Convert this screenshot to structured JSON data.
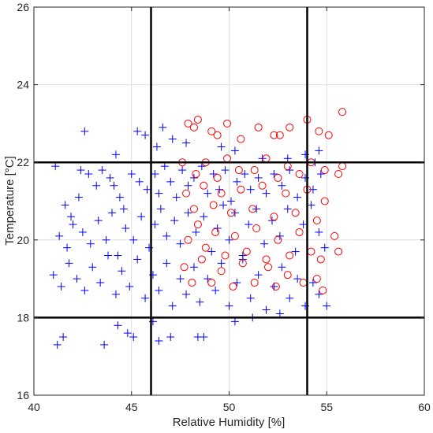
{
  "chart_data": {
    "type": "scatter",
    "xlabel": "Relative Humidity [%]",
    "ylabel": "Temperature [°C]",
    "xlim": [
      40,
      60
    ],
    "ylim": [
      16,
      26
    ],
    "xticks": [
      40,
      45,
      50,
      55,
      60
    ],
    "yticks": [
      16,
      18,
      20,
      22,
      24,
      26
    ],
    "grid": true,
    "reference_lines": {
      "vertical": [
        46.0,
        54.0
      ],
      "horizontal": [
        18.0,
        22.0
      ],
      "color": "#000000"
    },
    "series": [
      {
        "marker": "plus",
        "color": "#0000ff",
        "points": [
          [
            41.1,
            21.9
          ],
          [
            42.6,
            22.8
          ],
          [
            44.2,
            22.2
          ],
          [
            45.3,
            22.8
          ],
          [
            45.7,
            22.7
          ],
          [
            46.3,
            22.4
          ],
          [
            46.6,
            22.9
          ],
          [
            47.1,
            22.6
          ],
          [
            47.8,
            22.5
          ],
          [
            49.6,
            22.4
          ],
          [
            50.3,
            22.3
          ],
          [
            51.7,
            22.1
          ],
          [
            53.0,
            22.1
          ],
          [
            53.9,
            22.2
          ],
          [
            54.4,
            22.0
          ],
          [
            54.6,
            22.3
          ],
          [
            41.6,
            20.9
          ],
          [
            41.9,
            20.6
          ],
          [
            42.3,
            21.1
          ],
          [
            42.4,
            21.8
          ],
          [
            42.8,
            21.7
          ],
          [
            43.2,
            21.4
          ],
          [
            43.5,
            21.8
          ],
          [
            43.9,
            21.6
          ],
          [
            44.1,
            21.4
          ],
          [
            44.4,
            21.1
          ],
          [
            44.6,
            20.8
          ],
          [
            45.0,
            21.7
          ],
          [
            45.4,
            21.5
          ],
          [
            45.8,
            21.3
          ],
          [
            46.2,
            21.7
          ],
          [
            46.4,
            21.2
          ],
          [
            46.7,
            21.9
          ],
          [
            47.0,
            21.5
          ],
          [
            47.3,
            21.1
          ],
          [
            47.6,
            21.8
          ],
          [
            47.9,
            21.4
          ],
          [
            48.2,
            21.6
          ],
          [
            48.6,
            21.9
          ],
          [
            48.9,
            21.2
          ],
          [
            49.2,
            21.7
          ],
          [
            49.5,
            21.3
          ],
          [
            49.8,
            21.8
          ],
          [
            50.1,
            21.0
          ],
          [
            50.4,
            21.5
          ],
          [
            50.8,
            21.7
          ],
          [
            51.1,
            21.3
          ],
          [
            51.5,
            21.6
          ],
          [
            51.9,
            21.2
          ],
          [
            52.3,
            21.7
          ],
          [
            52.7,
            21.4
          ],
          [
            53.1,
            21.8
          ],
          [
            53.5,
            21.1
          ],
          [
            53.9,
            21.6
          ],
          [
            54.3,
            21.3
          ],
          [
            54.7,
            21.7
          ],
          [
            41.3,
            20.1
          ],
          [
            41.7,
            19.8
          ],
          [
            42.0,
            20.4
          ],
          [
            42.5,
            20.2
          ],
          [
            42.9,
            19.9
          ],
          [
            43.3,
            20.5
          ],
          [
            43.7,
            20.0
          ],
          [
            44.0,
            20.7
          ],
          [
            44.3,
            19.6
          ],
          [
            44.7,
            20.3
          ],
          [
            45.1,
            20.0
          ],
          [
            45.5,
            20.6
          ],
          [
            45.9,
            19.8
          ],
          [
            46.2,
            20.4
          ],
          [
            46.5,
            20.8
          ],
          [
            46.8,
            20.1
          ],
          [
            47.2,
            20.5
          ],
          [
            47.5,
            19.9
          ],
          [
            47.9,
            20.7
          ],
          [
            48.3,
            20.2
          ],
          [
            48.7,
            20.6
          ],
          [
            49.1,
            19.7
          ],
          [
            49.4,
            20.3
          ],
          [
            49.7,
            20.9
          ],
          [
            50.0,
            20.0
          ],
          [
            50.3,
            20.7
          ],
          [
            50.7,
            19.6
          ],
          [
            51.0,
            20.4
          ],
          [
            51.4,
            20.8
          ],
          [
            51.8,
            19.9
          ],
          [
            52.2,
            20.5
          ],
          [
            52.6,
            20.1
          ],
          [
            53.0,
            20.8
          ],
          [
            53.4,
            19.7
          ],
          [
            53.8,
            20.4
          ],
          [
            54.2,
            20.9
          ],
          [
            54.6,
            20.2
          ],
          [
            54.9,
            19.8
          ],
          [
            41.0,
            19.1
          ],
          [
            41.4,
            18.8
          ],
          [
            41.8,
            19.4
          ],
          [
            42.2,
            19.0
          ],
          [
            42.6,
            18.7
          ],
          [
            43.0,
            19.3
          ],
          [
            43.4,
            18.9
          ],
          [
            43.8,
            19.6
          ],
          [
            44.2,
            18.6
          ],
          [
            44.5,
            19.2
          ],
          [
            44.9,
            18.8
          ],
          [
            45.3,
            19.5
          ],
          [
            45.7,
            18.5
          ],
          [
            46.1,
            19.1
          ],
          [
            46.4,
            18.7
          ],
          [
            46.8,
            19.4
          ],
          [
            47.1,
            18.3
          ],
          [
            47.5,
            19.0
          ],
          [
            47.8,
            18.6
          ],
          [
            48.2,
            19.3
          ],
          [
            48.5,
            18.4
          ],
          [
            48.9,
            19.0
          ],
          [
            49.3,
            18.7
          ],
          [
            49.6,
            19.4
          ],
          [
            50.0,
            18.3
          ],
          [
            50.4,
            18.9
          ],
          [
            50.7,
            19.5
          ],
          [
            51.1,
            18.5
          ],
          [
            51.5,
            19.1
          ],
          [
            51.9,
            18.2
          ],
          [
            52.3,
            18.8
          ],
          [
            52.7,
            19.3
          ],
          [
            53.1,
            18.5
          ],
          [
            53.5,
            19.0
          ],
          [
            53.9,
            18.3
          ],
          [
            54.3,
            18.9
          ],
          [
            54.6,
            18.6
          ],
          [
            55.0,
            18.3
          ],
          [
            41.2,
            17.3
          ],
          [
            41.5,
            17.5
          ],
          [
            43.6,
            17.3
          ],
          [
            44.3,
            17.8
          ],
          [
            44.8,
            17.6
          ],
          [
            45.1,
            17.5
          ],
          [
            46.1,
            17.9
          ],
          [
            46.4,
            17.4
          ],
          [
            47.0,
            17.5
          ],
          [
            48.4,
            17.5
          ],
          [
            48.7,
            17.5
          ],
          [
            50.3,
            17.9
          ],
          [
            51.2,
            18.0
          ],
          [
            52.6,
            18.1
          ]
        ]
      },
      {
        "marker": "circle",
        "color": "#ff0000",
        "points": [
          [
            47.9,
            23.0
          ],
          [
            48.2,
            22.9
          ],
          [
            48.4,
            23.1
          ],
          [
            49.1,
            22.8
          ],
          [
            49.4,
            22.7
          ],
          [
            49.9,
            23.0
          ],
          [
            50.6,
            22.6
          ],
          [
            51.5,
            22.9
          ],
          [
            52.3,
            22.7
          ],
          [
            52.6,
            22.7
          ],
          [
            53.1,
            22.9
          ],
          [
            54.0,
            23.1
          ],
          [
            54.6,
            22.8
          ],
          [
            55.1,
            22.7
          ],
          [
            55.8,
            23.3
          ],
          [
            47.6,
            22.0
          ],
          [
            48.3,
            21.7
          ],
          [
            48.8,
            22.0
          ],
          [
            49.4,
            21.6
          ],
          [
            49.9,
            22.1
          ],
          [
            50.5,
            21.8
          ],
          [
            51.3,
            21.8
          ],
          [
            51.9,
            22.1
          ],
          [
            52.5,
            21.6
          ],
          [
            53.0,
            21.9
          ],
          [
            53.6,
            21.7
          ],
          [
            54.2,
            22.0
          ],
          [
            54.9,
            21.8
          ],
          [
            55.6,
            21.7
          ],
          [
            55.8,
            21.9
          ],
          [
            47.8,
            21.2
          ],
          [
            48.2,
            20.8
          ],
          [
            48.7,
            21.4
          ],
          [
            49.2,
            20.9
          ],
          [
            49.6,
            21.2
          ],
          [
            50.1,
            20.7
          ],
          [
            50.6,
            21.3
          ],
          [
            51.2,
            20.8
          ],
          [
            51.7,
            21.4
          ],
          [
            52.3,
            20.6
          ],
          [
            52.9,
            21.2
          ],
          [
            53.4,
            20.7
          ],
          [
            54.0,
            21.3
          ],
          [
            54.5,
            20.5
          ],
          [
            54.9,
            21.0
          ],
          [
            47.9,
            20.0
          ],
          [
            48.4,
            20.4
          ],
          [
            48.8,
            19.8
          ],
          [
            49.3,
            20.2
          ],
          [
            49.8,
            19.6
          ],
          [
            50.3,
            20.1
          ],
          [
            50.9,
            19.7
          ],
          [
            51.4,
            20.3
          ],
          [
            51.9,
            19.5
          ],
          [
            52.5,
            20.0
          ],
          [
            53.1,
            19.6
          ],
          [
            53.6,
            20.2
          ],
          [
            54.2,
            19.7
          ],
          [
            54.7,
            19.5
          ],
          [
            55.4,
            20.1
          ],
          [
            55.6,
            19.7
          ],
          [
            47.7,
            19.3
          ],
          [
            48.1,
            18.9
          ],
          [
            48.6,
            19.5
          ],
          [
            49.1,
            18.9
          ],
          [
            49.6,
            19.2
          ],
          [
            50.2,
            18.8
          ],
          [
            50.7,
            19.4
          ],
          [
            51.3,
            18.9
          ],
          [
            52.0,
            19.3
          ],
          [
            52.4,
            18.8
          ],
          [
            53.0,
            19.1
          ],
          [
            53.8,
            18.9
          ],
          [
            54.5,
            19.0
          ],
          [
            54.8,
            18.7
          ]
        ]
      }
    ]
  }
}
